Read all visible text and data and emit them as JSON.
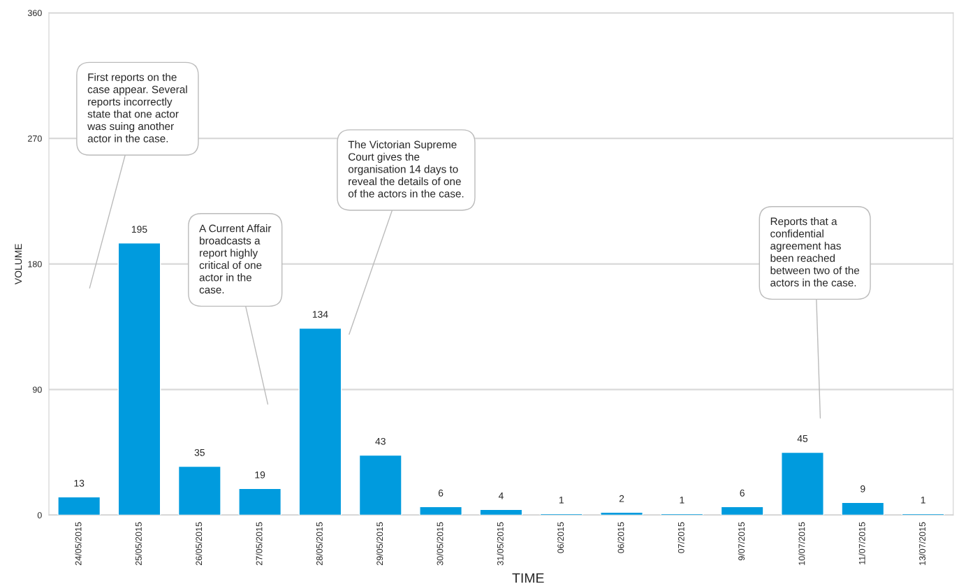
{
  "chart_data": {
    "type": "bar",
    "xlabel": "TIME",
    "ylabel": "VOLUME",
    "categories": [
      "24/05/2015",
      "25/05/2015",
      "26/05/2015",
      "27/05/2015",
      "28/05/2015",
      "29/05/2015",
      "30/05/2015",
      "31/05/2015",
      "06/2015",
      "06/2015",
      "07/2015",
      "9/07/2015",
      "10/07/2015",
      "11/07/2015",
      "13/07/2015"
    ],
    "values": [
      13,
      195,
      35,
      19,
      134,
      43,
      6,
      4,
      1,
      2,
      1,
      6,
      45,
      9,
      1
    ],
    "color": "#009bde",
    "ylim": [
      0,
      360
    ],
    "yticks": [
      0,
      90,
      180,
      270,
      360
    ],
    "grid": "y",
    "data_labels": true,
    "annotations": [
      "First reports on the\ncase appear. Several\nreports incorrectly\nstate that one actor\nwas suing another\nactor in the case.",
      "A Current Affair\nbroadcasts a\nreport highly\ncritical of one\nactor in the\ncase.",
      "The Victorian Supreme\nCourt gives the\norganisation 14 days to\nreveal the details of one\nof the actors in the case.",
      "Reports that a\nconfidential\nagreement has\nbeen reached\nbetween two of the\nactors in the case."
    ]
  }
}
